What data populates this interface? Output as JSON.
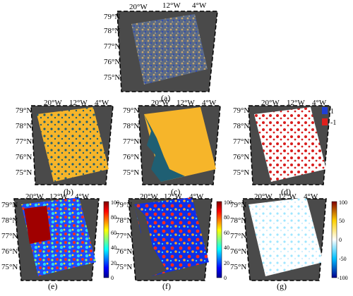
{
  "figure": {
    "panels": [
      {
        "id": "a",
        "label": "(a)"
      },
      {
        "id": "b",
        "label": "(b)"
      },
      {
        "id": "c",
        "label": "(c)"
      },
      {
        "id": "d",
        "label": "(d)"
      },
      {
        "id": "e",
        "label": "(e)"
      },
      {
        "id": "f",
        "label": "(f)"
      },
      {
        "id": "g",
        "label": "(g)"
      }
    ],
    "lon_labels": [
      "20°W",
      "12°W",
      "4°W"
    ],
    "lat_labels": [
      "79°N",
      "78°N",
      "77°N",
      "76°N",
      "75°N"
    ],
    "legend_d": [
      {
        "label": "1",
        "color": "#1f3fd6"
      },
      {
        "label": "-1",
        "color": "#e0201c"
      }
    ],
    "colorbar_pos": {
      "ticks": [
        "100",
        "80",
        "60",
        "40",
        "20",
        "0"
      ]
    },
    "colorbar_div": {
      "ticks": [
        "100",
        "50",
        "0",
        "-50",
        "-100"
      ]
    },
    "colors": {
      "map_bg": "#4a4a4a",
      "ice": "#f6b52a",
      "sea": "#1f5f73",
      "change_red": "#d81e1e"
    }
  }
}
